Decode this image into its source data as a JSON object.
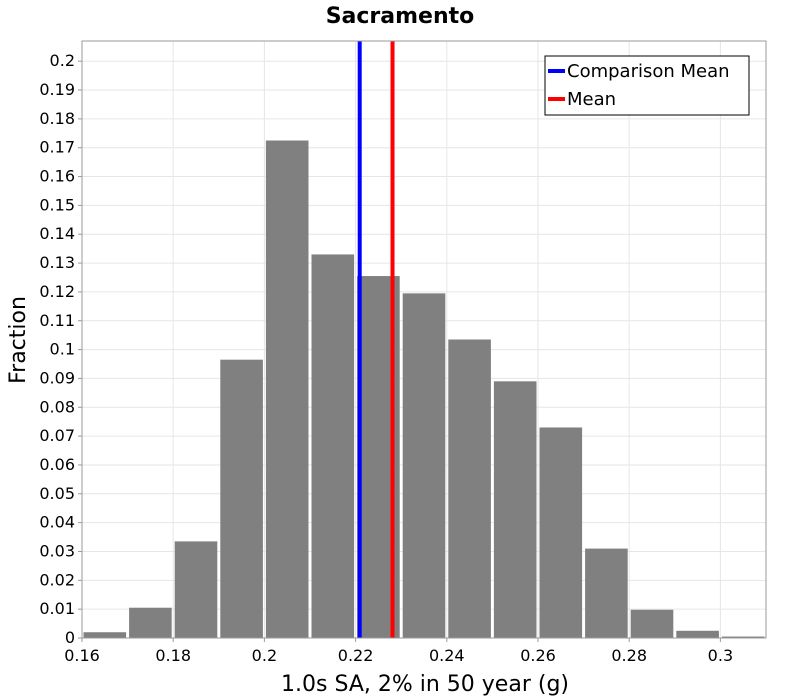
{
  "chart_data": {
    "type": "bar",
    "title": "Sacramento",
    "xlabel": "1.0s SA, 2% in 50 year (g)",
    "ylabel": "Fraction",
    "xlim": [
      0.16,
      0.31
    ],
    "ylim": [
      0,
      0.207
    ],
    "bin_width": 0.01,
    "x_ticks": [
      0.16,
      0.18,
      0.2,
      0.22,
      0.24,
      0.26,
      0.28,
      0.3
    ],
    "x_tick_labels": [
      "0.16",
      "0.18",
      "0.2",
      "0.22",
      "0.24",
      "0.26",
      "0.28",
      "0.3"
    ],
    "y_ticks": [
      0,
      0.01,
      0.02,
      0.03,
      0.04,
      0.05,
      0.06,
      0.07,
      0.08,
      0.09,
      0.1,
      0.11,
      0.12,
      0.13,
      0.14,
      0.15,
      0.16,
      0.17,
      0.18,
      0.19,
      0.2
    ],
    "y_tick_labels": [
      "0",
      "0.01",
      "0.02",
      "0.03",
      "0.04",
      "0.05",
      "0.06",
      "0.07",
      "0.08",
      "0.09",
      "0.1",
      "0.11",
      "0.12",
      "0.13",
      "0.14",
      "0.15",
      "0.16",
      "0.17",
      "0.18",
      "0.19",
      "0.2"
    ],
    "bins": [
      {
        "x": 0.165,
        "value": 0.002
      },
      {
        "x": 0.175,
        "value": 0.0105
      },
      {
        "x": 0.185,
        "value": 0.0335
      },
      {
        "x": 0.195,
        "value": 0.0965
      },
      {
        "x": 0.205,
        "value": 0.1725
      },
      {
        "x": 0.215,
        "value": 0.133
      },
      {
        "x": 0.225,
        "value": 0.1255
      },
      {
        "x": 0.235,
        "value": 0.1195
      },
      {
        "x": 0.245,
        "value": 0.1035
      },
      {
        "x": 0.255,
        "value": 0.089
      },
      {
        "x": 0.265,
        "value": 0.073
      },
      {
        "x": 0.275,
        "value": 0.031
      },
      {
        "x": 0.285,
        "value": 0.0098
      },
      {
        "x": 0.295,
        "value": 0.0025
      },
      {
        "x": 0.305,
        "value": 0.0005
      }
    ],
    "bar_color": "#808080",
    "reference_lines": [
      {
        "name": "Comparison Mean",
        "x": 0.2209,
        "color": "#0000ff"
      },
      {
        "name": "Mean",
        "x": 0.2281,
        "color": "#ff0000"
      }
    ],
    "grid": true,
    "legend_position": "top-right"
  }
}
